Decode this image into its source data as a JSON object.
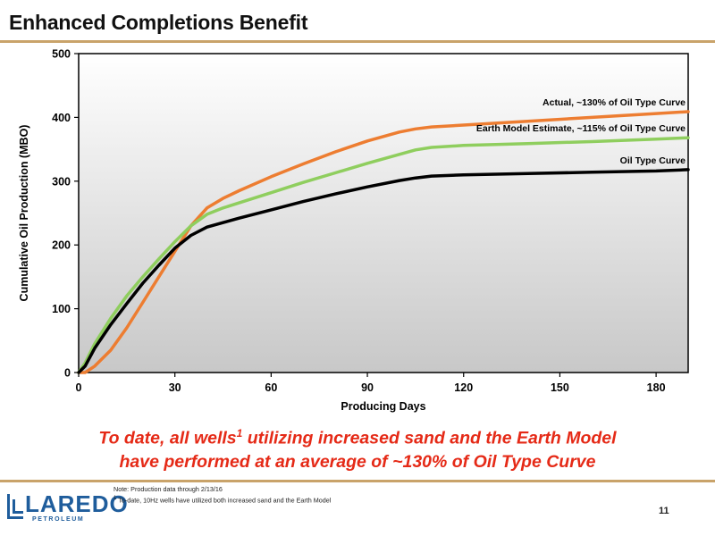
{
  "header": {
    "title": "Enhanced Completions Benefit"
  },
  "main": {
    "tagline_line1_pre": "To date, all wells",
    "tagline_sup": "1",
    "tagline_line1_post": " utilizing increased sand and the Earth Model",
    "tagline_line2": "have performed at an average of ~130% of Oil Type Curve"
  },
  "footer": {
    "note1": "Note: Production data through 2/13/16",
    "note2_sup": "1",
    "note2": " To-date, 10Hz wells have utilized both increased sand and the Earth Model",
    "page_number": "11",
    "logo_word": "LAREDO",
    "logo_sub": "PETROLEUM",
    "logo_color": "#1f5d9c"
  },
  "chart_data": {
    "type": "line",
    "title": "",
    "xlabel": "Producing Days",
    "ylabel": "Cumulative Oil Production (MBO)",
    "xlim": [
      0,
      190
    ],
    "ylim": [
      0,
      500
    ],
    "xticks": [
      0,
      30,
      60,
      90,
      120,
      150,
      180
    ],
    "yticks": [
      0,
      100,
      200,
      300,
      400,
      500
    ],
    "grid": false,
    "series": [
      {
        "name": "Actual, ~130% of Oil Type Curve",
        "color": "#ed7d31",
        "x": [
          0,
          2,
          5,
          10,
          15,
          20,
          25,
          30,
          35,
          40,
          45,
          50,
          60,
          70,
          80,
          90,
          100,
          105,
          110,
          120,
          140,
          160,
          180,
          190
        ],
        "y": [
          0,
          0,
          10,
          35,
          70,
          110,
          150,
          190,
          230,
          258,
          273,
          285,
          307,
          327,
          346,
          363,
          377,
          382,
          385,
          388,
          394,
          400,
          406,
          409
        ]
      },
      {
        "name": "Earth Model Estimate, ~115% of Oil Type Curve",
        "color": "#8fce5e",
        "x": [
          0,
          2,
          5,
          10,
          15,
          20,
          25,
          30,
          35,
          40,
          45,
          50,
          60,
          70,
          80,
          90,
          100,
          105,
          110,
          120,
          140,
          160,
          180,
          190
        ],
        "y": [
          0,
          15,
          45,
          85,
          120,
          150,
          178,
          205,
          230,
          248,
          258,
          266,
          282,
          298,
          313,
          328,
          342,
          349,
          353,
          356,
          359,
          362,
          366,
          368
        ]
      },
      {
        "name": "Oil Type Curve",
        "color": "#000000",
        "x": [
          0,
          2,
          5,
          10,
          15,
          20,
          25,
          30,
          35,
          40,
          45,
          50,
          60,
          70,
          80,
          90,
          100,
          105,
          110,
          120,
          140,
          160,
          180,
          190
        ],
        "y": [
          0,
          10,
          38,
          75,
          108,
          140,
          168,
          195,
          215,
          228,
          235,
          242,
          255,
          268,
          280,
          291,
          301,
          305,
          308,
          310,
          312,
          314,
          316,
          318
        ]
      }
    ]
  }
}
